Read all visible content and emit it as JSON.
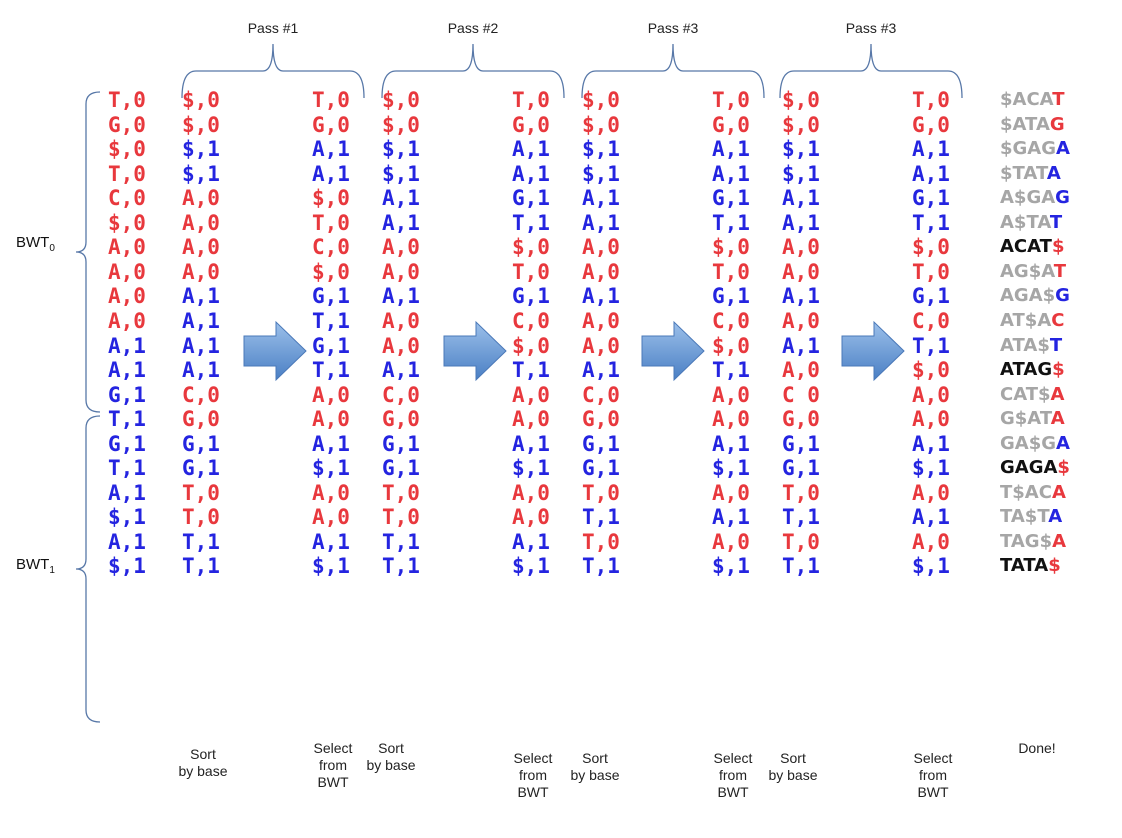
{
  "colors": {
    "red": "#e8383d",
    "blue": "#2424e0",
    "gray": "#a6a6a6",
    "black": "#111111"
  },
  "passes": [
    "Pass #1",
    "Pass #2",
    "Pass #3",
    "Pass #3"
  ],
  "bwt_labels": [
    {
      "base": "BWT",
      "sub": "0"
    },
    {
      "base": "BWT",
      "sub": "1"
    }
  ],
  "columns": [
    {
      "cells": [
        "T,0",
        "G,0",
        "$,0",
        "T,0",
        "C,0",
        "$,0",
        "A,0",
        "A,0",
        "A,0",
        "A,0",
        "A,1",
        "A,1",
        "G,1",
        "T,1",
        "G,1",
        "T,1",
        "A,1",
        "$,1",
        "A,1",
        "$,1"
      ]
    },
    {
      "cells": [
        "$,0",
        "$,0",
        "$,1",
        "$,1",
        "A,0",
        "A,0",
        "A,0",
        "A,0",
        "A,1",
        "A,1",
        "A,1",
        "A,1",
        "C,0",
        "G,0",
        "G,1",
        "G,1",
        "T,0",
        "T,0",
        "T,1",
        "T,1"
      ]
    },
    {
      "cells": [
        "T,0",
        "G,0",
        "A,1",
        "A,1",
        "$,0",
        "T,0",
        "C,0",
        "$,0",
        "G,1",
        "T,1",
        "G,1",
        "T,1",
        "A,0",
        "A,0",
        "A,1",
        "$,1",
        "A,0",
        "A,0",
        "A,1",
        "$,1"
      ]
    },
    {
      "cells": [
        "$,0",
        "$,0",
        "$,1",
        "$,1",
        "A,1",
        "A,1",
        "A,0",
        "A,0",
        "A,1",
        "A,0",
        "A,0",
        "A,1",
        "C,0",
        "G,0",
        "G,1",
        "G,1",
        "T,0",
        "T,0",
        "T,1",
        "T,1"
      ]
    },
    {
      "cells": [
        "T,0",
        "G,0",
        "A,1",
        "A,1",
        "G,1",
        "T,1",
        "$,0",
        "T,0",
        "G,1",
        "C,0",
        "$,0",
        "T,1",
        "A,0",
        "A,0",
        "A,1",
        "$,1",
        "A,0",
        "A,0",
        "A,1",
        "$,1"
      ]
    },
    {
      "cells": [
        "$,0",
        "$,0",
        "$,1",
        "$,1",
        "A,1",
        "A,1",
        "A,0",
        "A,0",
        "A,1",
        "A,0",
        "A,0",
        "A,1",
        "C,0",
        "G,0",
        "G,1",
        "G,1",
        "T,0",
        "T,1",
        "T,0",
        "T,1"
      ]
    },
    {
      "cells": [
        "T,0",
        "G,0",
        "A,1",
        "A,1",
        "G,1",
        "T,1",
        "$,0",
        "T,0",
        "G,1",
        "C,0",
        "$,0",
        "T,1",
        "A,0",
        "A,0",
        "A,1",
        "$,1",
        "A,0",
        "A,1",
        "A,0",
        "$,1"
      ]
    },
    {
      "cells": [
        "$,0",
        "$,0",
        "$,1",
        "$,1",
        "A,1",
        "A,1",
        "A,0",
        "A,0",
        "A,1",
        "A,0",
        "A,1",
        "A,0",
        "C 0",
        "G,0",
        "G,1",
        "G,1",
        "T,0",
        "T,1",
        "T,0",
        "T,1"
      ]
    },
    {
      "cells": [
        "T,0",
        "G,0",
        "A,1",
        "A,1",
        "G,1",
        "T,1",
        "$,0",
        "T,0",
        "G,1",
        "C,0",
        "T,1",
        "$,0",
        "A,0",
        "A,0",
        "A,1",
        "$,1",
        "A,0",
        "A,1",
        "A,0",
        "$,1"
      ]
    }
  ],
  "results": [
    {
      "prefix": "$ACA",
      "last": "T",
      "done": false
    },
    {
      "prefix": "$ATA",
      "last": "G",
      "done": false
    },
    {
      "prefix": "$GAG",
      "last": "A",
      "done": false
    },
    {
      "prefix": "$TAT",
      "last": "A",
      "done": false
    },
    {
      "prefix": "A$GA",
      "last": "G",
      "done": false
    },
    {
      "prefix": "A$TA",
      "last": "T",
      "done": false
    },
    {
      "prefix": "ACAT",
      "last": "$",
      "done": true
    },
    {
      "prefix": "AG$A",
      "last": "T",
      "done": false
    },
    {
      "prefix": "AGA$",
      "last": "G",
      "done": false
    },
    {
      "prefix": "AT$A",
      "last": "C",
      "done": false
    },
    {
      "prefix": "ATA$",
      "last": "T",
      "done": false
    },
    {
      "prefix": "ATAG",
      "last": "$",
      "done": true
    },
    {
      "prefix": "CAT$",
      "last": "A",
      "done": false
    },
    {
      "prefix": "G$AT",
      "last": "A",
      "done": false
    },
    {
      "prefix": "GA$G",
      "last": "A",
      "done": false
    },
    {
      "prefix": "GAGA",
      "last": "$",
      "done": true
    },
    {
      "prefix": "T$AC",
      "last": "A",
      "done": false
    },
    {
      "prefix": "TA$T",
      "last": "A",
      "done": false
    },
    {
      "prefix": "TAG$",
      "last": "A",
      "done": false
    },
    {
      "prefix": "TATA",
      "last": "$",
      "done": true
    }
  ],
  "bottom_labels": [
    "Sort\nby base",
    "Select\nfrom\nBWT",
    "Sort\nby base",
    "Select\nfrom\nBWT",
    "Sort\nby base",
    "Select\nfrom\nBWT",
    "Sort\nby base",
    "Select\nfrom\nBWT",
    "Done!"
  ]
}
